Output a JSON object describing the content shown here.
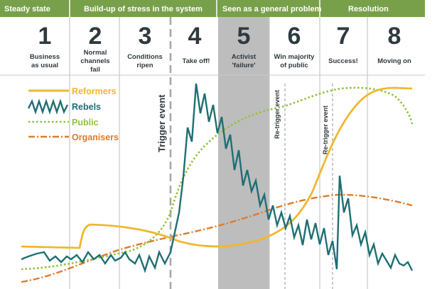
{
  "phases": [
    {
      "label": "Steady state"
    },
    {
      "label": "Build-up of stress in the system"
    },
    {
      "label": "Seen as a general problem"
    },
    {
      "label": "Resolution"
    }
  ],
  "stages": [
    {
      "number": "1",
      "lines": [
        "Business",
        "as usual"
      ]
    },
    {
      "number": "2",
      "lines": [
        "Normal",
        "channels",
        "fail"
      ]
    },
    {
      "number": "3",
      "lines": [
        "Conditions",
        "ripen"
      ]
    },
    {
      "number": "4",
      "lines": [
        "Take off!"
      ]
    },
    {
      "number": "5",
      "lines": [
        "Activist",
        "'failure'"
      ]
    },
    {
      "number": "6",
      "lines": [
        "Win majority",
        "of public"
      ]
    },
    {
      "number": "7",
      "lines": [
        "Success!"
      ]
    },
    {
      "number": "8",
      "lines": [
        "Moving on"
      ]
    }
  ],
  "legend": [
    {
      "label": "Reformers",
      "color": "#f0b72f",
      "style": "solid"
    },
    {
      "label": "Rebels",
      "color": "#1e6f73",
      "style": "zigzag"
    },
    {
      "label": "Public",
      "color": "#8fc23b",
      "style": "dotted"
    },
    {
      "label": "Organisers",
      "color": "#e07b2a",
      "style": "dashdot"
    }
  ],
  "triggers": {
    "main": "Trigger event",
    "re1": "Re-trigger event",
    "re2": "Re-trigger event"
  },
  "colors": {
    "header": "#78a04a",
    "text": "#2f3a40",
    "divider": "#c9c9c9",
    "shade": "#bdbdbd"
  }
}
